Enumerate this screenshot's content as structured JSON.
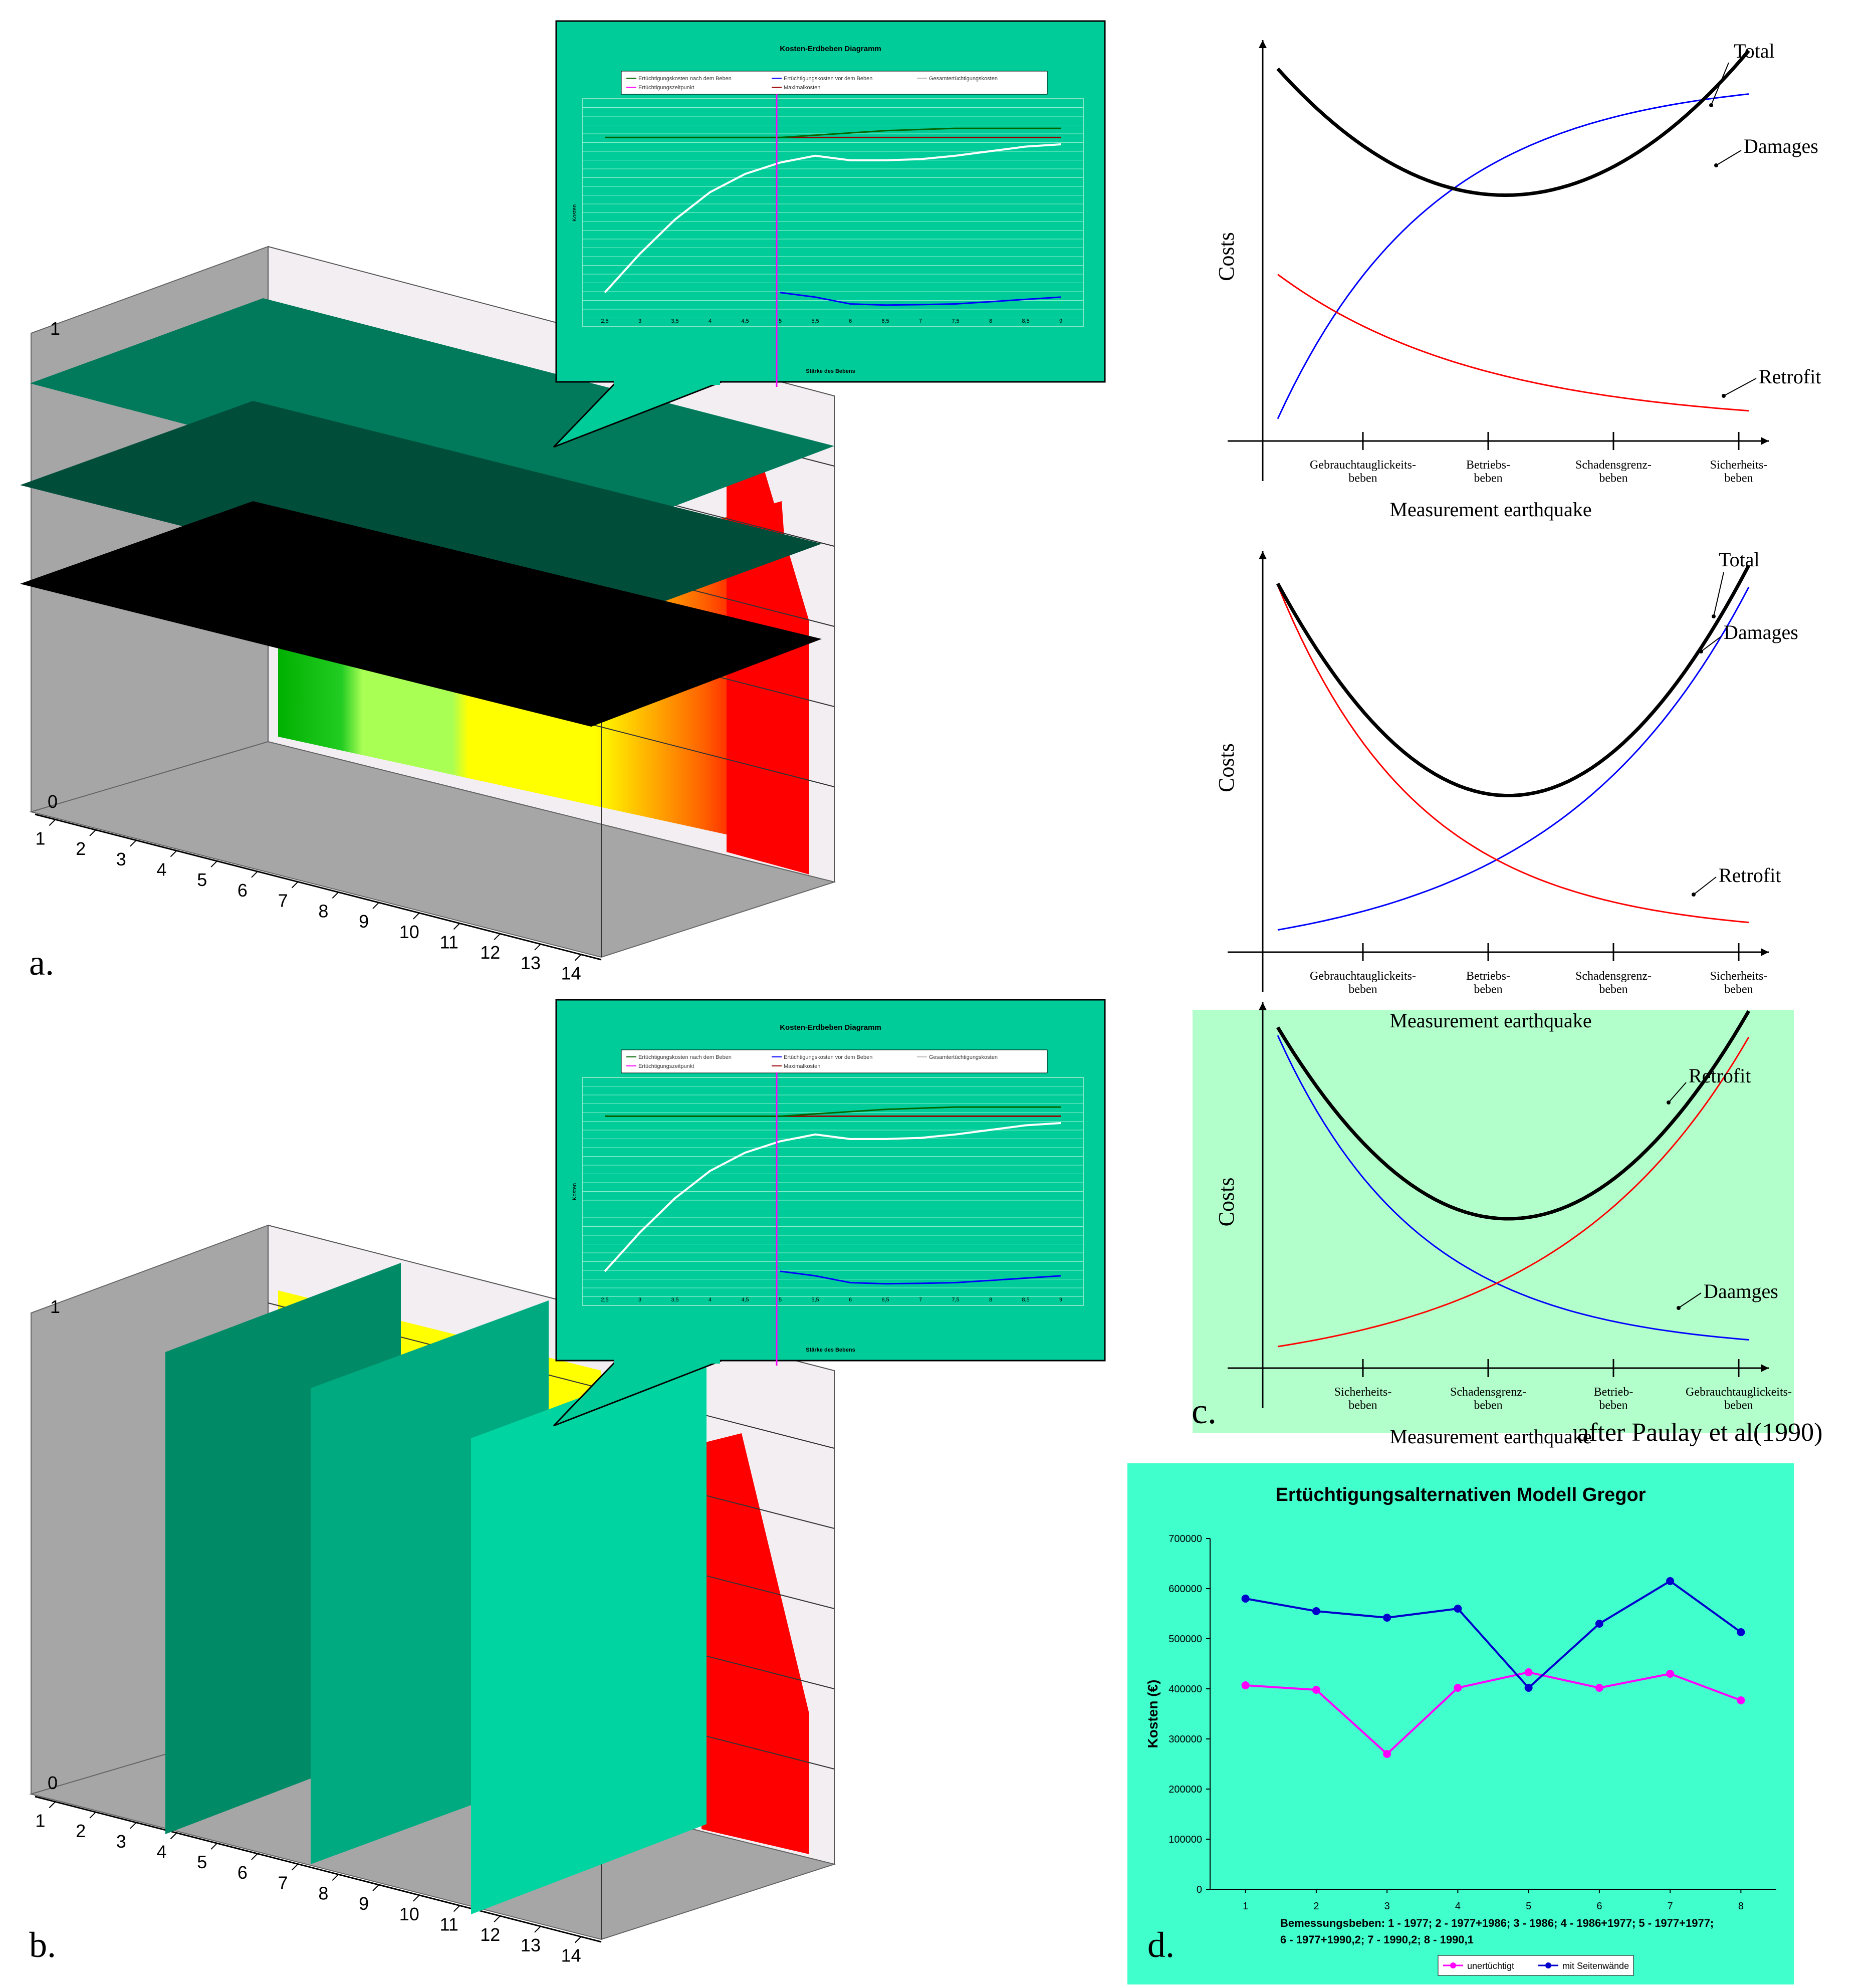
{
  "colors": {
    "callout_green": "#00cc99",
    "plate_dark": "#007a5a",
    "plate_darker": "#004d3a",
    "plate_black": "#000000",
    "vplate_1": "#008a66",
    "vplate_2": "#00aa80",
    "vplate_3": "#00d4a0",
    "panel_c_bg": "#b3ffcc",
    "panel_d_bg": "#40ffcc",
    "series_blue": "#0000ff",
    "series_red": "#ff0000",
    "series_black": "#000000",
    "series_magenta": "#ff00ff",
    "series_navy": "#0000cc",
    "series_white": "#ffffff",
    "series_darkgreen": "#006600",
    "series_darkred": "#990000"
  },
  "panel_labels": {
    "a": "a.",
    "b": "b.",
    "c": "c.",
    "d": "d."
  },
  "citation": "after Paulay et al(1990)",
  "axis3d": {
    "depth_ticks": [
      "1",
      "2",
      "3",
      "4",
      "5",
      "6",
      "7",
      "8",
      "9",
      "10",
      "11",
      "12",
      "13",
      "14"
    ],
    "vertical_top_label": "1",
    "vertical_bottom_label": "0"
  },
  "callout_charts": [
    {
      "title": "Kosten-Erdbeben Diagramm",
      "legend": [
        {
          "label": "Ertüchtigungskosten nach dem Beben",
          "color": "#006600"
        },
        {
          "label": "Ertüchtigungskosten vor dem Beben",
          "color": "#0000ff"
        },
        {
          "label": "Gesamtertüchtigungskosten",
          "color": "#ffffff"
        },
        {
          "label": "Ertüchtigungszeitpunkt",
          "color": "#ff00ff"
        },
        {
          "label": "Maximalkosten",
          "color": "#990000"
        }
      ],
      "ylabel": "Kosten",
      "xlabel": "Stärke des Bebens",
      "x_ticks": [
        "2,5",
        "3",
        "3,5",
        "4",
        "4,5",
        "5",
        "5,5",
        "6",
        "6,5",
        "7",
        "7,5",
        "8",
        "8,5",
        "9"
      ]
    },
    {
      "title": "Kosten-Erdbeben Diagramm",
      "legend": [
        {
          "label": "Ertüchtigungskosten nach dem Beben",
          "color": "#006600"
        },
        {
          "label": "Ertüchtigungskosten vor dem Beben",
          "color": "#0000ff"
        },
        {
          "label": "Gesamtertüchtigungskosten",
          "color": "#ffffff"
        },
        {
          "label": "Ertüchtigungszeitpunkt",
          "color": "#ff00ff"
        },
        {
          "label": "Maximalkosten",
          "color": "#990000"
        }
      ],
      "ylabel": "Kosten",
      "xlabel": "Stärke des Bebens",
      "x_ticks": [
        "2,5",
        "3",
        "3,5",
        "4",
        "4,5",
        "5",
        "5,5",
        "6",
        "6,5",
        "7",
        "7,5",
        "8",
        "8,5",
        "9"
      ]
    }
  ],
  "schematic_charts": [
    {
      "ylabel": "Costs",
      "xlabel": "Measurement earthquake",
      "curve_labels": {
        "total": "Total",
        "damages": "Damages",
        "retrofit": "Retrofit"
      },
      "x_categories": [
        "Gebrauchtauglickeits-\nbeben",
        "Betriebs-\nbeben",
        "Schadensgrenz-\nbeben",
        "Sicherheits-\nbeben"
      ]
    },
    {
      "ylabel": "Costs",
      "xlabel": "Measurement earthquake",
      "curve_labels": {
        "total": "Total",
        "damages": "Damages",
        "retrofit": "Retrofit"
      },
      "x_categories": [
        "Gebrauchtauglickeits-\nbeben",
        "Betriebs-\nbeben",
        "Schadensgrenz-\nbeben",
        "Sicherheits-\nbeben"
      ]
    },
    {
      "ylabel": "Costs",
      "xlabel": "Measurement earthquake",
      "curve_labels": {
        "retrofit": "Retrofit",
        "damages": "Daamges"
      },
      "x_categories": [
        "Sicherheits-\nbeben",
        "Schadensgrenz-\nbeben",
        "Betrieb-\nbeben",
        "Gebrauchtauglickeits-\nbeben"
      ]
    }
  ],
  "chart_data": {
    "type": "line",
    "title": "Ertüchtigungsalternativen Modell Gregor",
    "xlabel": "Bemessungsbeben: 1 - 1977; 2 - 1977+1986; 3 - 1986; 4 - 1986+1977; 5 - 1977+1977;",
    "xlabel_line2": "6 - 1977+1990,2; 7 - 1990,2; 8 - 1990,1",
    "ylabel": "Kosten (€)",
    "categories": [
      "1",
      "2",
      "3",
      "4",
      "5",
      "6",
      "7",
      "8"
    ],
    "y_ticks": [
      "0",
      "100000",
      "200000",
      "300000",
      "400000",
      "500000",
      "600000",
      "700000"
    ],
    "ylim": [
      0,
      700000
    ],
    "series": [
      {
        "name": "unertüchtigt",
        "color": "#ff00ff",
        "values": [
          407000,
          398000,
          270000,
          402000,
          433000,
          402000,
          430000,
          377000
        ]
      },
      {
        "name": "mit Seitenwände",
        "color": "#0000cc",
        "values": [
          580000,
          555000,
          542000,
          560000,
          402000,
          530000,
          615000,
          513000
        ]
      }
    ]
  }
}
